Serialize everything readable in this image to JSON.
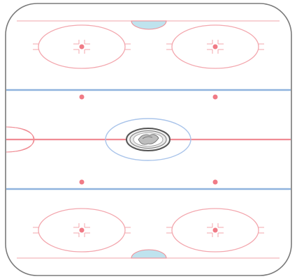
{
  "rink": {
    "orientation": "vertical",
    "colors": {
      "board": "#7a7a7a",
      "ice": "#ffffff",
      "red_line": "#f08c94",
      "blue_line": "#8fb2de",
      "crease": "#bfe3ee",
      "faceoff": "#f07b86",
      "center_circle": "#a9c4ea",
      "logo_ring": "#555555",
      "logo_fill": "#f2f2f2"
    },
    "elements": {
      "goal_creases": 2,
      "blue_lines": 2,
      "center_red_line": 1,
      "end_zone_faceoff_circles": 4,
      "neutral_zone_faceoff_dots": 4,
      "center_circle": 1,
      "center_logo": "center-ice-logo"
    }
  }
}
